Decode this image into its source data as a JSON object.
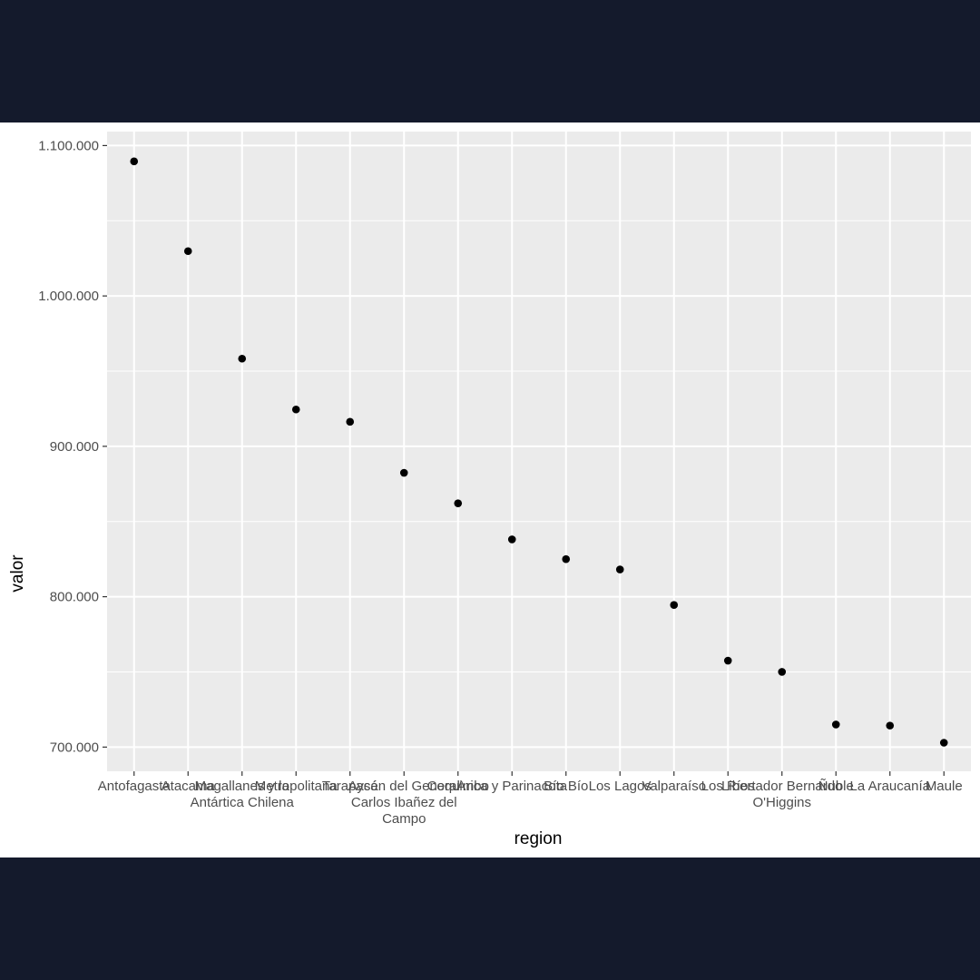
{
  "theme": {
    "background": "#141a2c",
    "figure_background": "#ffffff",
    "panel_background": "#ebebeb",
    "grid_color": "#ffffff",
    "point_color": "#000000",
    "tick_text_color": "#4d4d4d",
    "axis_title_color": "#000000"
  },
  "chart_data": {
    "type": "scatter",
    "title": "",
    "xlabel": "region",
    "ylabel": "valor",
    "ylim": [
      683900,
      1109300
    ],
    "y_ticks": [
      700000,
      800000,
      900000,
      1000000,
      1100000
    ],
    "y_tick_labels": [
      "700.000",
      "800.000",
      "900.000",
      "1.000.000",
      "1.100.000"
    ],
    "grid": true,
    "legend": "none",
    "categories": [
      [
        "Antofagasta"
      ],
      [
        "Atacama"
      ],
      [
        "Magallanes y la",
        "Antártica Chilena"
      ],
      [
        "Metropolitana"
      ],
      [
        "Tarapacá"
      ],
      [
        "Aysén del General",
        "Carlos Ibañez del",
        "Campo"
      ],
      [
        "Coquimbo"
      ],
      [
        "Arica y Parinacota"
      ],
      [
        "Bío Bío"
      ],
      [
        "Los Lagos"
      ],
      [
        "Valparaíso"
      ],
      [
        "Los Ríos"
      ],
      [
        "Libertador Bernardo",
        "O'Higgins"
      ],
      [
        "Ñuble"
      ],
      [
        "La Araucanía"
      ],
      [
        "Maule"
      ]
    ],
    "values": [
      1089500,
      1029800,
      958300,
      924500,
      916300,
      882400,
      862100,
      838100,
      825000,
      818100,
      794500,
      757500,
      750000,
      715000,
      714300,
      702900
    ]
  }
}
